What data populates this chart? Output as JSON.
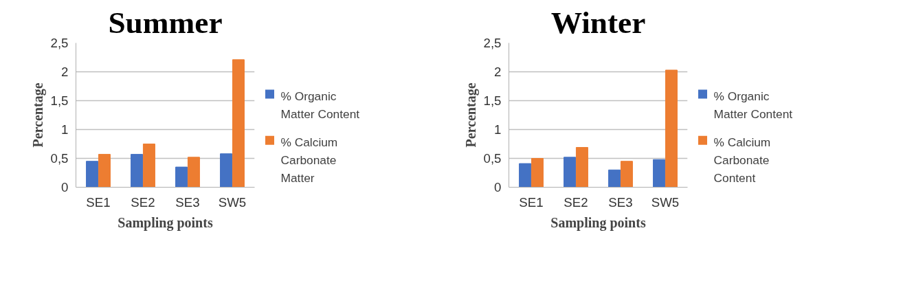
{
  "chart_data": [
    {
      "type": "bar",
      "title": "Summer",
      "xlabel": "Sampling points",
      "ylabel": "Percentage",
      "categories": [
        "SE1",
        "SE2",
        "SE3",
        "SW5"
      ],
      "series": [
        {
          "name": "% Organic Matter Content",
          "color": "#4472c4",
          "values": [
            0.45,
            0.57,
            0.35,
            0.58
          ]
        },
        {
          "name": "% Calcium Carbonate Matter",
          "color": "#ed7d31",
          "values": [
            0.57,
            0.75,
            0.52,
            2.21
          ]
        }
      ],
      "ylim": [
        0,
        2.5
      ],
      "yticks": [
        0,
        {
          "value": 0.5,
          "label": "0,5"
        },
        1,
        {
          "value": 1.5,
          "label": "1,5"
        },
        2,
        {
          "value": 2.5,
          "label": "2,5"
        }
      ],
      "grid": "y",
      "legend": "right"
    },
    {
      "type": "bar",
      "title": "Winter",
      "xlabel": "Sampling points",
      "ylabel": "Percentage",
      "categories": [
        "SE1",
        "SE2",
        "SE3",
        "SW5"
      ],
      "series": [
        {
          "name": "% Organic Matter Content",
          "color": "#4472c4",
          "values": [
            0.41,
            0.52,
            0.3,
            0.48
          ]
        },
        {
          "name": "% Calcium Carbonate Content",
          "color": "#ed7d31",
          "values": [
            0.5,
            0.69,
            0.45,
            2.03
          ]
        }
      ],
      "ylim": [
        0,
        2.5
      ],
      "yticks": [
        0,
        {
          "value": 0.5,
          "label": "0,5"
        },
        1,
        {
          "value": 1.5,
          "label": "1,5"
        },
        2,
        {
          "value": 2.5,
          "label": "2,5"
        }
      ],
      "grid": "y",
      "legend": "right"
    }
  ]
}
